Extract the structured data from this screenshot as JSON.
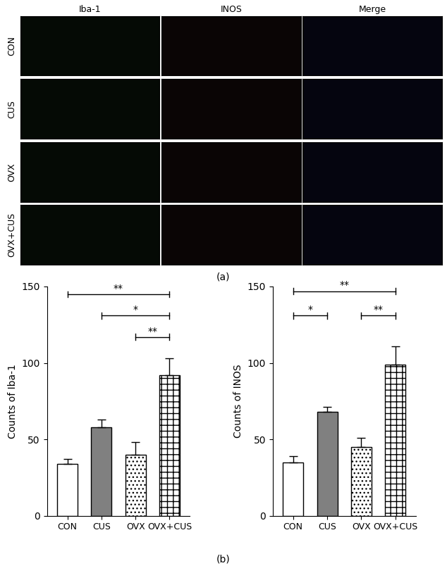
{
  "images": {
    "label": "(a)",
    "columns": [
      "Iba-1",
      "INOS",
      "Merge"
    ],
    "rows": [
      "CON",
      "CUS",
      "OVX",
      "OVX+CUS"
    ]
  },
  "panel_b_label": "(b)",
  "chart_data": [
    {
      "type": "bar",
      "y_label": "Counts of Iba-1",
      "categories": [
        "CON",
        "CUS",
        "OVX",
        "OVX+CUS"
      ],
      "values": [
        34,
        58,
        40,
        92
      ],
      "errors": [
        3,
        5,
        8,
        11
      ],
      "colors": [
        "#ffffff",
        "#808080",
        "#ffffff",
        "#ffffff"
      ],
      "ylim": [
        0,
        150
      ],
      "yticks": [
        0,
        50,
        100,
        150
      ],
      "grid": false,
      "significance": [
        {
          "from": "CON",
          "to": "OVX+CUS",
          "label": "**",
          "y": 145
        },
        {
          "from": "CUS",
          "to": "OVX+CUS",
          "label": "*",
          "y": 131
        },
        {
          "from": "OVX",
          "to": "OVX+CUS",
          "label": "**",
          "y": 117
        }
      ]
    },
    {
      "type": "bar",
      "y_label": "Counts of INOS",
      "categories": [
        "CON",
        "CUS",
        "OVX",
        "OVX+CUS"
      ],
      "values": [
        35,
        68,
        45,
        99
      ],
      "errors": [
        4,
        3,
        6,
        12
      ],
      "colors": [
        "#ffffff",
        "#808080",
        "#ffffff",
        "#ffffff"
      ],
      "ylim": [
        0,
        150
      ],
      "yticks": [
        0,
        50,
        100,
        150
      ],
      "grid": false,
      "significance": [
        {
          "from": "CON",
          "to": "OVX+CUS",
          "label": "**",
          "y": 147
        },
        {
          "from": "CON",
          "to": "CUS",
          "label": "*",
          "y": 131
        },
        {
          "from": "OVX",
          "to": "OVX+CUS",
          "label": "**",
          "y": 131
        }
      ]
    }
  ]
}
